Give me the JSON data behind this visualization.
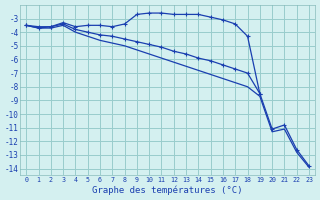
{
  "xlabel": "Graphe des températures (°C)",
  "background_color": "#d4f0f0",
  "grid_color": "#99cccc",
  "line_color": "#1a3fb0",
  "xlim": [
    -0.5,
    23.5
  ],
  "ylim": [
    -14.5,
    -2.0
  ],
  "yticks": [
    -3,
    -4,
    -5,
    -6,
    -7,
    -8,
    -9,
    -10,
    -11,
    -12,
    -13,
    -14
  ],
  "xticks": [
    0,
    1,
    2,
    3,
    4,
    5,
    6,
    7,
    8,
    9,
    10,
    11,
    12,
    13,
    14,
    15,
    16,
    17,
    18,
    19,
    20,
    21,
    22,
    23
  ],
  "series1_x": [
    0,
    1,
    2,
    3,
    4,
    5,
    6,
    7,
    8,
    9,
    10,
    11,
    12,
    13,
    14,
    15,
    16,
    17,
    18,
    19
  ],
  "series1_y": [
    -3.5,
    -3.7,
    -3.6,
    -3.3,
    -3.6,
    -3.5,
    -3.5,
    -3.6,
    -3.4,
    -2.7,
    -2.6,
    -2.6,
    -2.7,
    -2.7,
    -2.7,
    -2.9,
    -3.1,
    -3.4,
    -4.3,
    -8.5
  ],
  "series2_x": [
    0,
    1,
    2,
    3,
    4,
    5,
    6,
    7,
    8,
    9,
    10,
    11,
    12,
    13,
    14,
    15,
    16,
    17,
    18,
    19,
    20,
    21,
    22,
    23
  ],
  "series2_y": [
    -3.5,
    -3.6,
    -3.6,
    -3.4,
    -3.8,
    -4.0,
    -4.2,
    -4.3,
    -4.5,
    -4.7,
    -4.9,
    -5.1,
    -5.4,
    -5.6,
    -5.9,
    -6.1,
    -6.4,
    -6.7,
    -7.0,
    -8.5,
    -11.1,
    -10.8,
    -12.6,
    -13.8
  ],
  "series3_x": [
    0,
    1,
    2,
    3,
    4,
    5,
    6,
    7,
    8,
    9,
    10,
    11,
    12,
    13,
    14,
    15,
    16,
    17,
    18,
    19,
    20,
    21,
    22,
    23
  ],
  "series3_y": [
    -3.5,
    -3.7,
    -3.7,
    -3.5,
    -4.0,
    -4.3,
    -4.6,
    -4.8,
    -5.0,
    -5.3,
    -5.6,
    -5.9,
    -6.2,
    -6.5,
    -6.8,
    -7.1,
    -7.4,
    -7.7,
    -8.0,
    -8.7,
    -11.3,
    -11.1,
    -12.8,
    -13.9
  ]
}
